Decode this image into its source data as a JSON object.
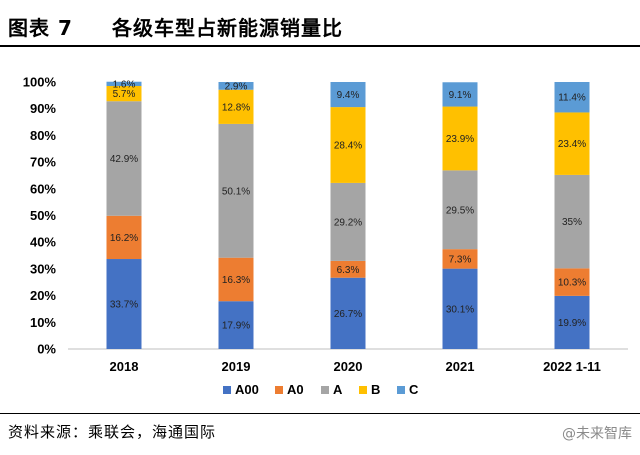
{
  "figure": {
    "number": "图表 7",
    "title": "各级车型占新能源销量比"
  },
  "source": "资料来源：乘联会，海通国际",
  "watermark": "@未来智库",
  "colors": {
    "A00": "#4472C4",
    "A0": "#ED7D31",
    "A": "#A5A5A5",
    "B": "#FFC000",
    "C": "#5B9BD5"
  },
  "chart_data": {
    "type": "bar",
    "stacked": true,
    "percent_axis": true,
    "categories": [
      "2018",
      "2019",
      "2020",
      "2021",
      "2022 1-11"
    ],
    "series": [
      {
        "name": "A00",
        "values": [
          33.7,
          17.9,
          26.7,
          30.1,
          19.9
        ],
        "labels": [
          "33.7%",
          "17.9%",
          "26.7%",
          "30.1%",
          "19.9%"
        ]
      },
      {
        "name": "A0",
        "values": [
          16.2,
          16.3,
          6.3,
          7.3,
          10.3
        ],
        "labels": [
          "16.2%",
          "16.3%",
          "6.3%",
          "7.3%",
          "10.3%"
        ]
      },
      {
        "name": "A",
        "values": [
          42.9,
          50.1,
          29.2,
          29.5,
          35
        ],
        "labels": [
          "42.9%",
          "50.1%",
          "29.2%",
          "29.5%",
          "35%"
        ]
      },
      {
        "name": "B",
        "values": [
          5.7,
          12.8,
          28.4,
          23.9,
          23.4
        ],
        "labels": [
          "5.7%",
          "12.8%",
          "28.4%",
          "23.9%",
          "23.4%"
        ]
      },
      {
        "name": "C",
        "values": [
          1.6,
          2.9,
          9.4,
          9.1,
          11.4
        ],
        "labels": [
          "1.6%",
          "2.9%",
          "9.4%",
          "9.1%",
          "11.4%"
        ]
      }
    ],
    "y_ticks": [
      "0%",
      "10%",
      "20%",
      "30%",
      "40%",
      "50%",
      "60%",
      "70%",
      "80%",
      "90%",
      "100%"
    ],
    "ylim": [
      0,
      100
    ],
    "grid": false,
    "legend_position": "bottom"
  }
}
